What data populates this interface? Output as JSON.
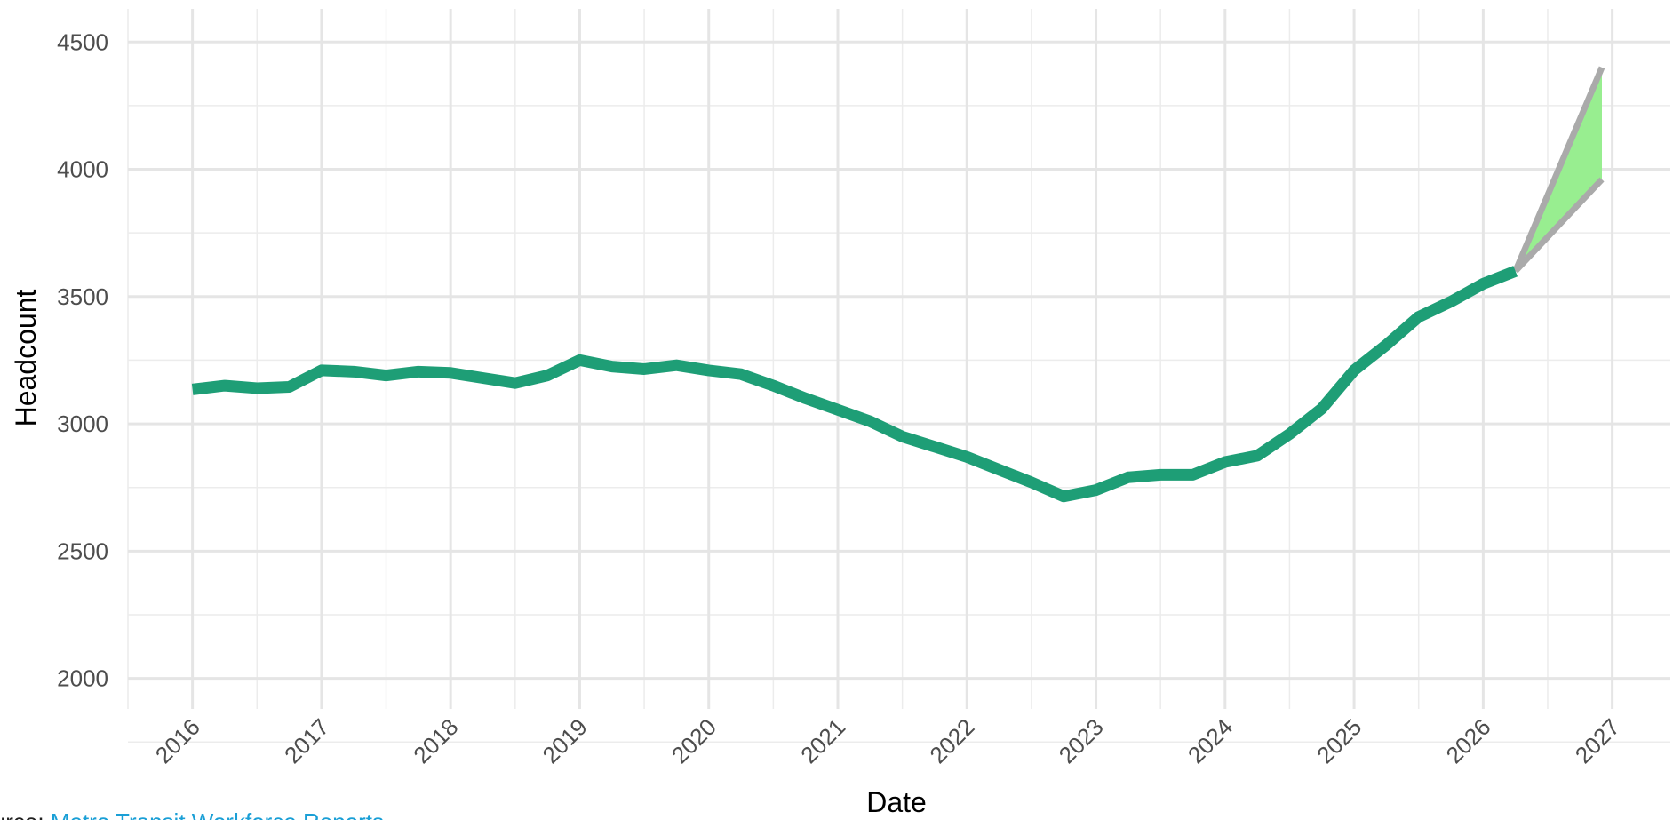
{
  "chart_data": {
    "type": "line",
    "x_label": "Date",
    "y_label": "Headcount",
    "source_label": "Source:",
    "source": "Metro Transit Workforce Reports",
    "x": [
      2016.0,
      2016.25,
      2016.5,
      2016.75,
      2017.0,
      2017.25,
      2017.5,
      2017.75,
      2018.0,
      2018.25,
      2018.5,
      2018.75,
      2019.0,
      2019.25,
      2019.5,
      2019.75,
      2020.0,
      2020.25,
      2020.5,
      2020.75,
      2021.0,
      2021.25,
      2021.5,
      2021.75,
      2022.0,
      2022.25,
      2022.5,
      2022.75,
      2023.0,
      2023.25,
      2023.5,
      2023.75,
      2024.0,
      2024.25,
      2024.5,
      2024.75,
      2025.0,
      2025.25,
      2025.5,
      2025.75,
      2026.0,
      2026.25
    ],
    "series": [
      {
        "color": "#1e9e76",
        "values": [
          3135,
          3150,
          3140,
          3145,
          3210,
          3205,
          3190,
          3205,
          3200,
          3180,
          3160,
          3190,
          3250,
          3225,
          3215,
          3230,
          3210,
          3195,
          3150,
          3100,
          3055,
          3010,
          2950,
          2910,
          2870,
          2820,
          2770,
          2715,
          2740,
          2790,
          2800,
          2800,
          2850,
          2875,
          2960,
          3060,
          3210,
          3310,
          3420,
          3480,
          3550,
          3600
        ]
      }
    ],
    "forecast": {
      "x": [
        2026.25,
        2026.92
      ],
      "upper": [
        3600,
        4400
      ],
      "lower": [
        3600,
        3960
      ],
      "fill": "#98ee90",
      "line_color": "#aaaaaa"
    },
    "xlim": [
      2015.5,
      2027.45
    ],
    "xticks": [
      2016,
      2017,
      2018,
      2019,
      2020,
      2021,
      2022,
      2023,
      2024,
      2025,
      2026,
      2027
    ],
    "ylim": [
      1880,
      4630
    ],
    "yticks": [
      2000,
      2500,
      3000,
      3500,
      4000,
      4500
    ],
    "grid": true,
    "minor_grid": true
  }
}
